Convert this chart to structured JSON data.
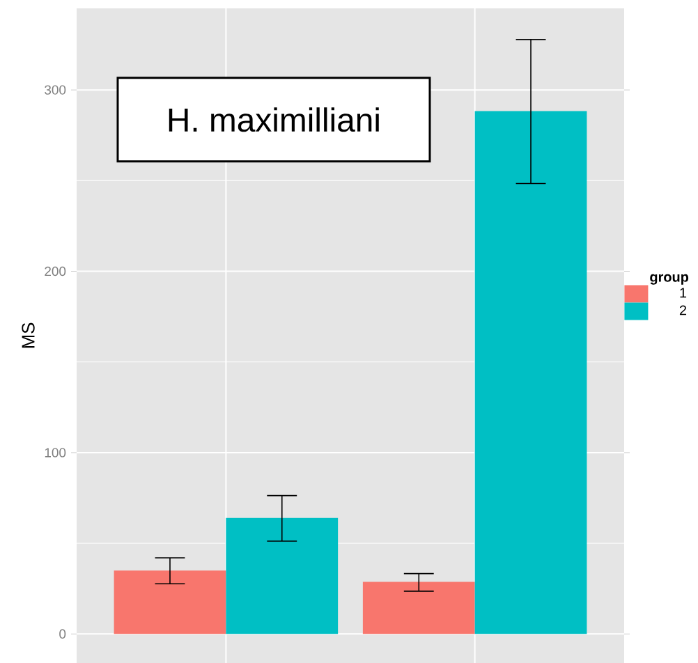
{
  "chart_data": {
    "type": "bar",
    "ylabel": "MS",
    "legend_title": "group",
    "categories": [
      null,
      null
    ],
    "series": [
      {
        "name": "1",
        "color": "#f8766d",
        "values": [
          35,
          28.7
        ],
        "errors": [
          [
            27.7,
            42
          ],
          [
            23.6,
            33.3
          ]
        ]
      },
      {
        "name": "2",
        "color": "#00bfc4",
        "values": [
          64,
          288.3
        ],
        "errors": [
          [
            51.2,
            76.3
          ],
          [
            248.4,
            327.8
          ]
        ]
      }
    ],
    "ylim": [
      -16,
      345
    ],
    "yticks": [
      0,
      100,
      200,
      300
    ],
    "grid": true,
    "legend": "right",
    "annotations": [
      "H. maximilliani"
    ]
  }
}
